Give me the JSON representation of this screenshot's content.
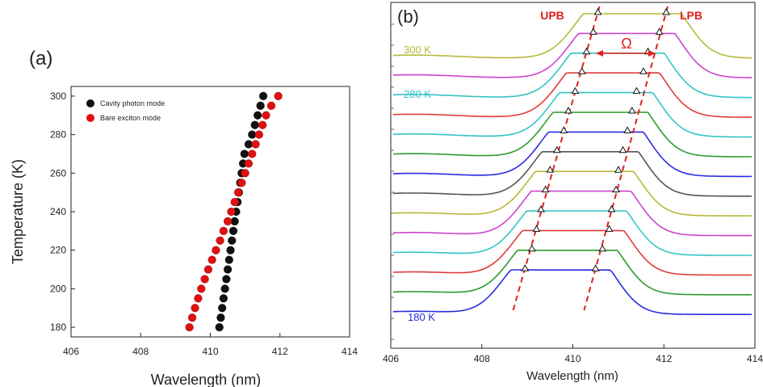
{
  "chart_data": [
    {
      "panel": "(a)",
      "type": "scatter",
      "xlabel": "Wavelength (nm)",
      "ylabel": "Temperature (K)",
      "xlim": [
        406,
        414
      ],
      "ylim": [
        175,
        305
      ],
      "xticks": [
        406,
        408,
        410,
        412,
        414
      ],
      "yticks": [
        180,
        200,
        220,
        240,
        260,
        280,
        300
      ],
      "legend_position": "top-left",
      "grid": false,
      "series": [
        {
          "name": "Cavity photon mode",
          "color": "#111111",
          "points": [
            [
              410.26,
              180
            ],
            [
              410.3,
              185
            ],
            [
              410.34,
              190
            ],
            [
              410.38,
              195
            ],
            [
              410.42,
              200
            ],
            [
              410.46,
              205
            ],
            [
              410.5,
              210
            ],
            [
              410.54,
              215
            ],
            [
              410.58,
              220
            ],
            [
              410.62,
              225
            ],
            [
              410.66,
              230
            ],
            [
              410.7,
              235
            ],
            [
              410.74,
              240
            ],
            [
              410.78,
              245
            ],
            [
              410.82,
              250
            ],
            [
              410.86,
              255
            ],
            [
              410.9,
              260
            ],
            [
              410.94,
              265
            ],
            [
              410.98,
              270
            ],
            [
              411.1,
              275
            ],
            [
              411.2,
              280
            ],
            [
              411.28,
              285
            ],
            [
              411.36,
              290
            ],
            [
              411.44,
              295
            ],
            [
              411.52,
              300
            ]
          ]
        },
        {
          "name": "Bare exciton mode",
          "color": "#e01010",
          "points": [
            [
              409.4,
              180
            ],
            [
              409.48,
              185
            ],
            [
              409.56,
              190
            ],
            [
              409.65,
              195
            ],
            [
              409.74,
              200
            ],
            [
              409.84,
              205
            ],
            [
              409.94,
              210
            ],
            [
              410.05,
              215
            ],
            [
              410.16,
              220
            ],
            [
              410.28,
              225
            ],
            [
              410.38,
              230
            ],
            [
              410.5,
              235
            ],
            [
              410.6,
              240
            ],
            [
              410.7,
              245
            ],
            [
              410.8,
              250
            ],
            [
              410.9,
              255
            ],
            [
              411.0,
              260
            ],
            [
              411.1,
              265
            ],
            [
              411.2,
              270
            ],
            [
              411.3,
              275
            ],
            [
              411.4,
              280
            ],
            [
              411.5,
              285
            ],
            [
              411.6,
              290
            ],
            [
              411.75,
              295
            ],
            [
              411.95,
              300
            ]
          ]
        }
      ]
    },
    {
      "panel": "(b)",
      "type": "line",
      "xlabel": "Wavelength (nm)",
      "ylabel": "",
      "xlim": [
        406,
        414
      ],
      "xticks": [
        406,
        408,
        410,
        412,
        414
      ],
      "grid": false,
      "annotations": {
        "upb_label": "UPB",
        "lpb_label": "LPB",
        "splitting_label": "Ω",
        "temp_top": "300 K",
        "temp_mid": "280 K",
        "temp_bottom": "180 K"
      },
      "series": [
        {
          "name": "300 K",
          "color": "#b8b83a",
          "upb": 410.55,
          "lpb": 412.05,
          "amp": 1.0
        },
        {
          "name": "",
          "color": "#cc44cc",
          "upb": 410.45,
          "lpb": 411.9,
          "amp": 1.0
        },
        {
          "name": "",
          "color": "#33c4c4",
          "upb": 410.3,
          "lpb": 411.65,
          "amp": 1.0
        },
        {
          "name": "",
          "color": "#e23a3a",
          "upb": 410.2,
          "lpb": 411.55,
          "amp": 1.0
        },
        {
          "name": "280 K",
          "color": "#33c4c4",
          "upb": 410.05,
          "lpb": 411.4,
          "amp": 1.0
        },
        {
          "name": "",
          "color": "#2e9a2e",
          "upb": 409.9,
          "lpb": 411.3,
          "amp": 1.0
        },
        {
          "name": "",
          "color": "#2a2ae0",
          "upb": 409.8,
          "lpb": 411.2,
          "amp": 1.0
        },
        {
          "name": "",
          "color": "#555555",
          "upb": 409.65,
          "lpb": 411.1,
          "amp": 1.0
        },
        {
          "name": "",
          "color": "#b8b83a",
          "upb": 409.5,
          "lpb": 411.0,
          "amp": 1.0
        },
        {
          "name": "",
          "color": "#cc44cc",
          "upb": 409.4,
          "lpb": 410.95,
          "amp": 1.0
        },
        {
          "name": "",
          "color": "#33c4c4",
          "upb": 409.3,
          "lpb": 410.85,
          "amp": 1.0
        },
        {
          "name": "",
          "color": "#e23a3a",
          "upb": 409.2,
          "lpb": 410.8,
          "amp": 1.0
        },
        {
          "name": "",
          "color": "#2e9a2e",
          "upb": 409.1,
          "lpb": 410.65,
          "amp": 1.0
        },
        {
          "name": "180 K",
          "color": "#2a2ae0",
          "upb": 408.95,
          "lpb": 410.5,
          "amp": 1.0
        }
      ]
    }
  ]
}
